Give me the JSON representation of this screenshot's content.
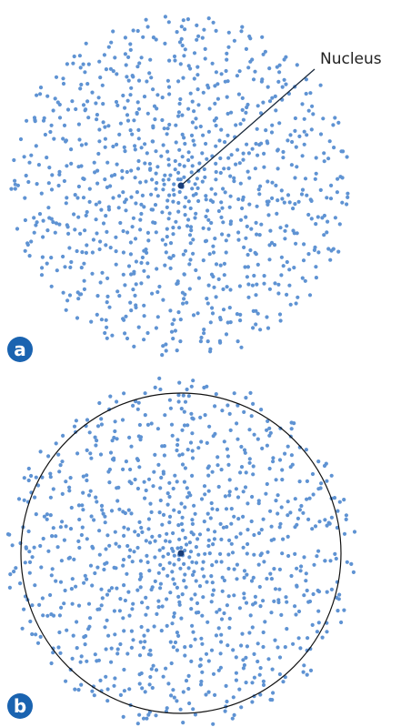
{
  "nucleus_label": "Nucleus",
  "panels": [
    {
      "label": "a"
    },
    {
      "label": "b"
    }
  ]
}
